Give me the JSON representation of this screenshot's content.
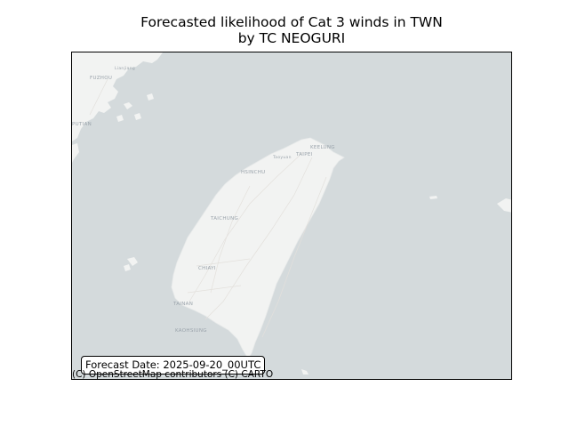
{
  "figure": {
    "title_line1": "Forecasted likelihood of Cat 3 winds in TWN",
    "title_line2": "by TC NEOGURI"
  },
  "map": {
    "basemap": "CartoDB light (no data overlay)",
    "colors": {
      "water": "#d4dadc",
      "land": "#f2f3f2",
      "road": "#e3e0dc",
      "label": "#9aa3ab"
    },
    "cities": {
      "fuzhou": "FUZHOU",
      "lianjiang": "Lianjiang",
      "putian": "PUTIAN",
      "keelung": "KEELUNG",
      "taoyuan": "Taoyuan",
      "taipei": "TAIPEI",
      "hsinchu": "HSINCHU",
      "taichung": "TAICHUNG",
      "chiayi": "CHIAYI",
      "tainan": "TAINAN",
      "kaohsiung": "KAOHSIUNG"
    },
    "forecast_date": "Forecast Date: 2025-09-20_00UTC",
    "attribution": "(C) OpenStreetMap contributors (C) CARTO"
  }
}
